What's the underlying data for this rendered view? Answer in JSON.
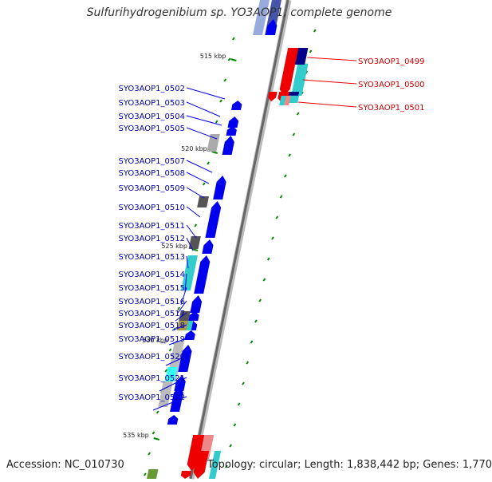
{
  "title": "Sulfurihydrogenibium sp. YO3AOP1, complete genome",
  "accession": "Accession: NC_010730",
  "topology": "Topology: circular; Length: 1,838,442 bp; Genes: 1,770",
  "colors": {
    "forward": "#0000ee",
    "reverse": "#ee0000",
    "backbone": "#888888",
    "tick": "#008800",
    "label_forward": "#0000aa",
    "label_reverse": "#cc0000"
  },
  "kbp_ticks": [
    "515 kbp",
    "520 kbp",
    "525 kbp",
    "530 kbp",
    "535 kbp"
  ],
  "reverse_genes": [
    "SYO3AOP1_0499",
    "SYO3AOP1_0500",
    "SYO3AOP1_0501"
  ],
  "forward_genes": [
    "SYO3AOP1_0502",
    "SYO3AOP1_0503",
    "SYO3AOP1_0504",
    "SYO3AOP1_0505",
    "SYO3AOP1_0507",
    "SYO3AOP1_0508",
    "SYO3AOP1_0509",
    "SYO3AOP1_0510",
    "SYO3AOP1_0511",
    "SYO3AOP1_0512",
    "SYO3AOP1_0513",
    "SYO3AOP1_0514",
    "SYO3AOP1_0515",
    "SYO3AOP1_0516",
    "SYO3AOP1_0517",
    "SYO3AOP1_0518",
    "SYO3AOP1_0519",
    "SYO3AOP1_0520",
    "SYO3AOP1_0521",
    "SYO3AOP1_0522"
  ]
}
